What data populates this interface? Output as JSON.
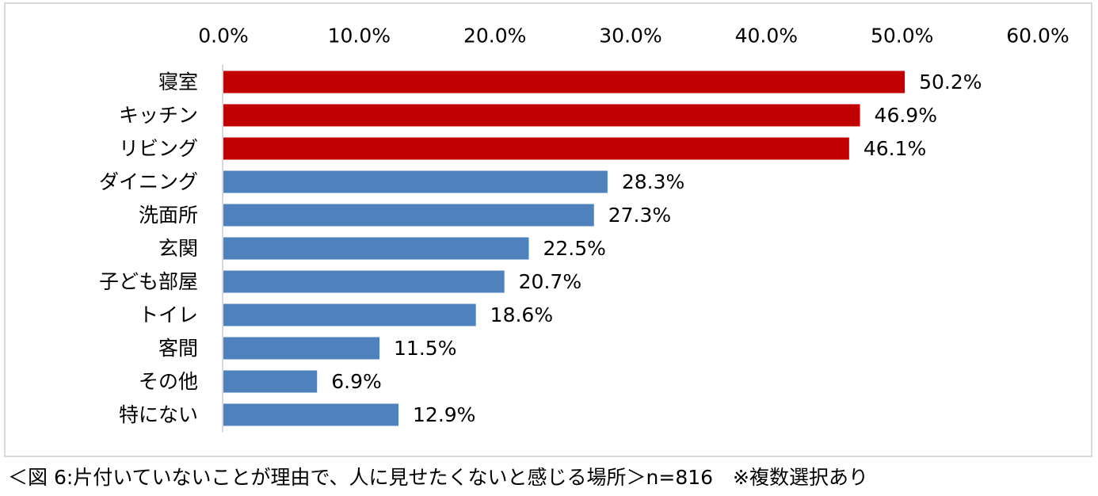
{
  "caption": "＜図 6:片付いていないことが理由で、人に見せたくないと感じる場所＞n=816　※複数選択あり",
  "chart_data": {
    "type": "bar",
    "orientation": "horizontal",
    "title": "",
    "xlabel": "",
    "ylabel": "",
    "xlim": [
      0,
      60
    ],
    "x_ticks": [
      "0.0%",
      "10.0%",
      "20.0%",
      "30.0%",
      "40.0%",
      "50.0%",
      "60.0%"
    ],
    "x_axis_position": "top",
    "grid": false,
    "legend": "none",
    "categories": [
      "寝室",
      "キッチン",
      "リビング",
      "ダイニング",
      "洗面所",
      "玄関",
      "子ども部屋",
      "トイレ",
      "客間",
      "その他",
      "特にない"
    ],
    "values": [
      50.2,
      46.9,
      46.1,
      28.3,
      27.3,
      22.5,
      20.7,
      18.6,
      11.5,
      6.9,
      12.9
    ],
    "value_labels": [
      "50.2%",
      "46.9%",
      "46.1%",
      "28.3%",
      "27.3%",
      "22.5%",
      "20.7%",
      "18.6%",
      "11.5%",
      "6.9%",
      "12.9%"
    ],
    "highlight_count": 3,
    "colors": {
      "highlight": "#c00000",
      "normal": "#4f81bd",
      "axis": "#d9d9d9"
    }
  }
}
